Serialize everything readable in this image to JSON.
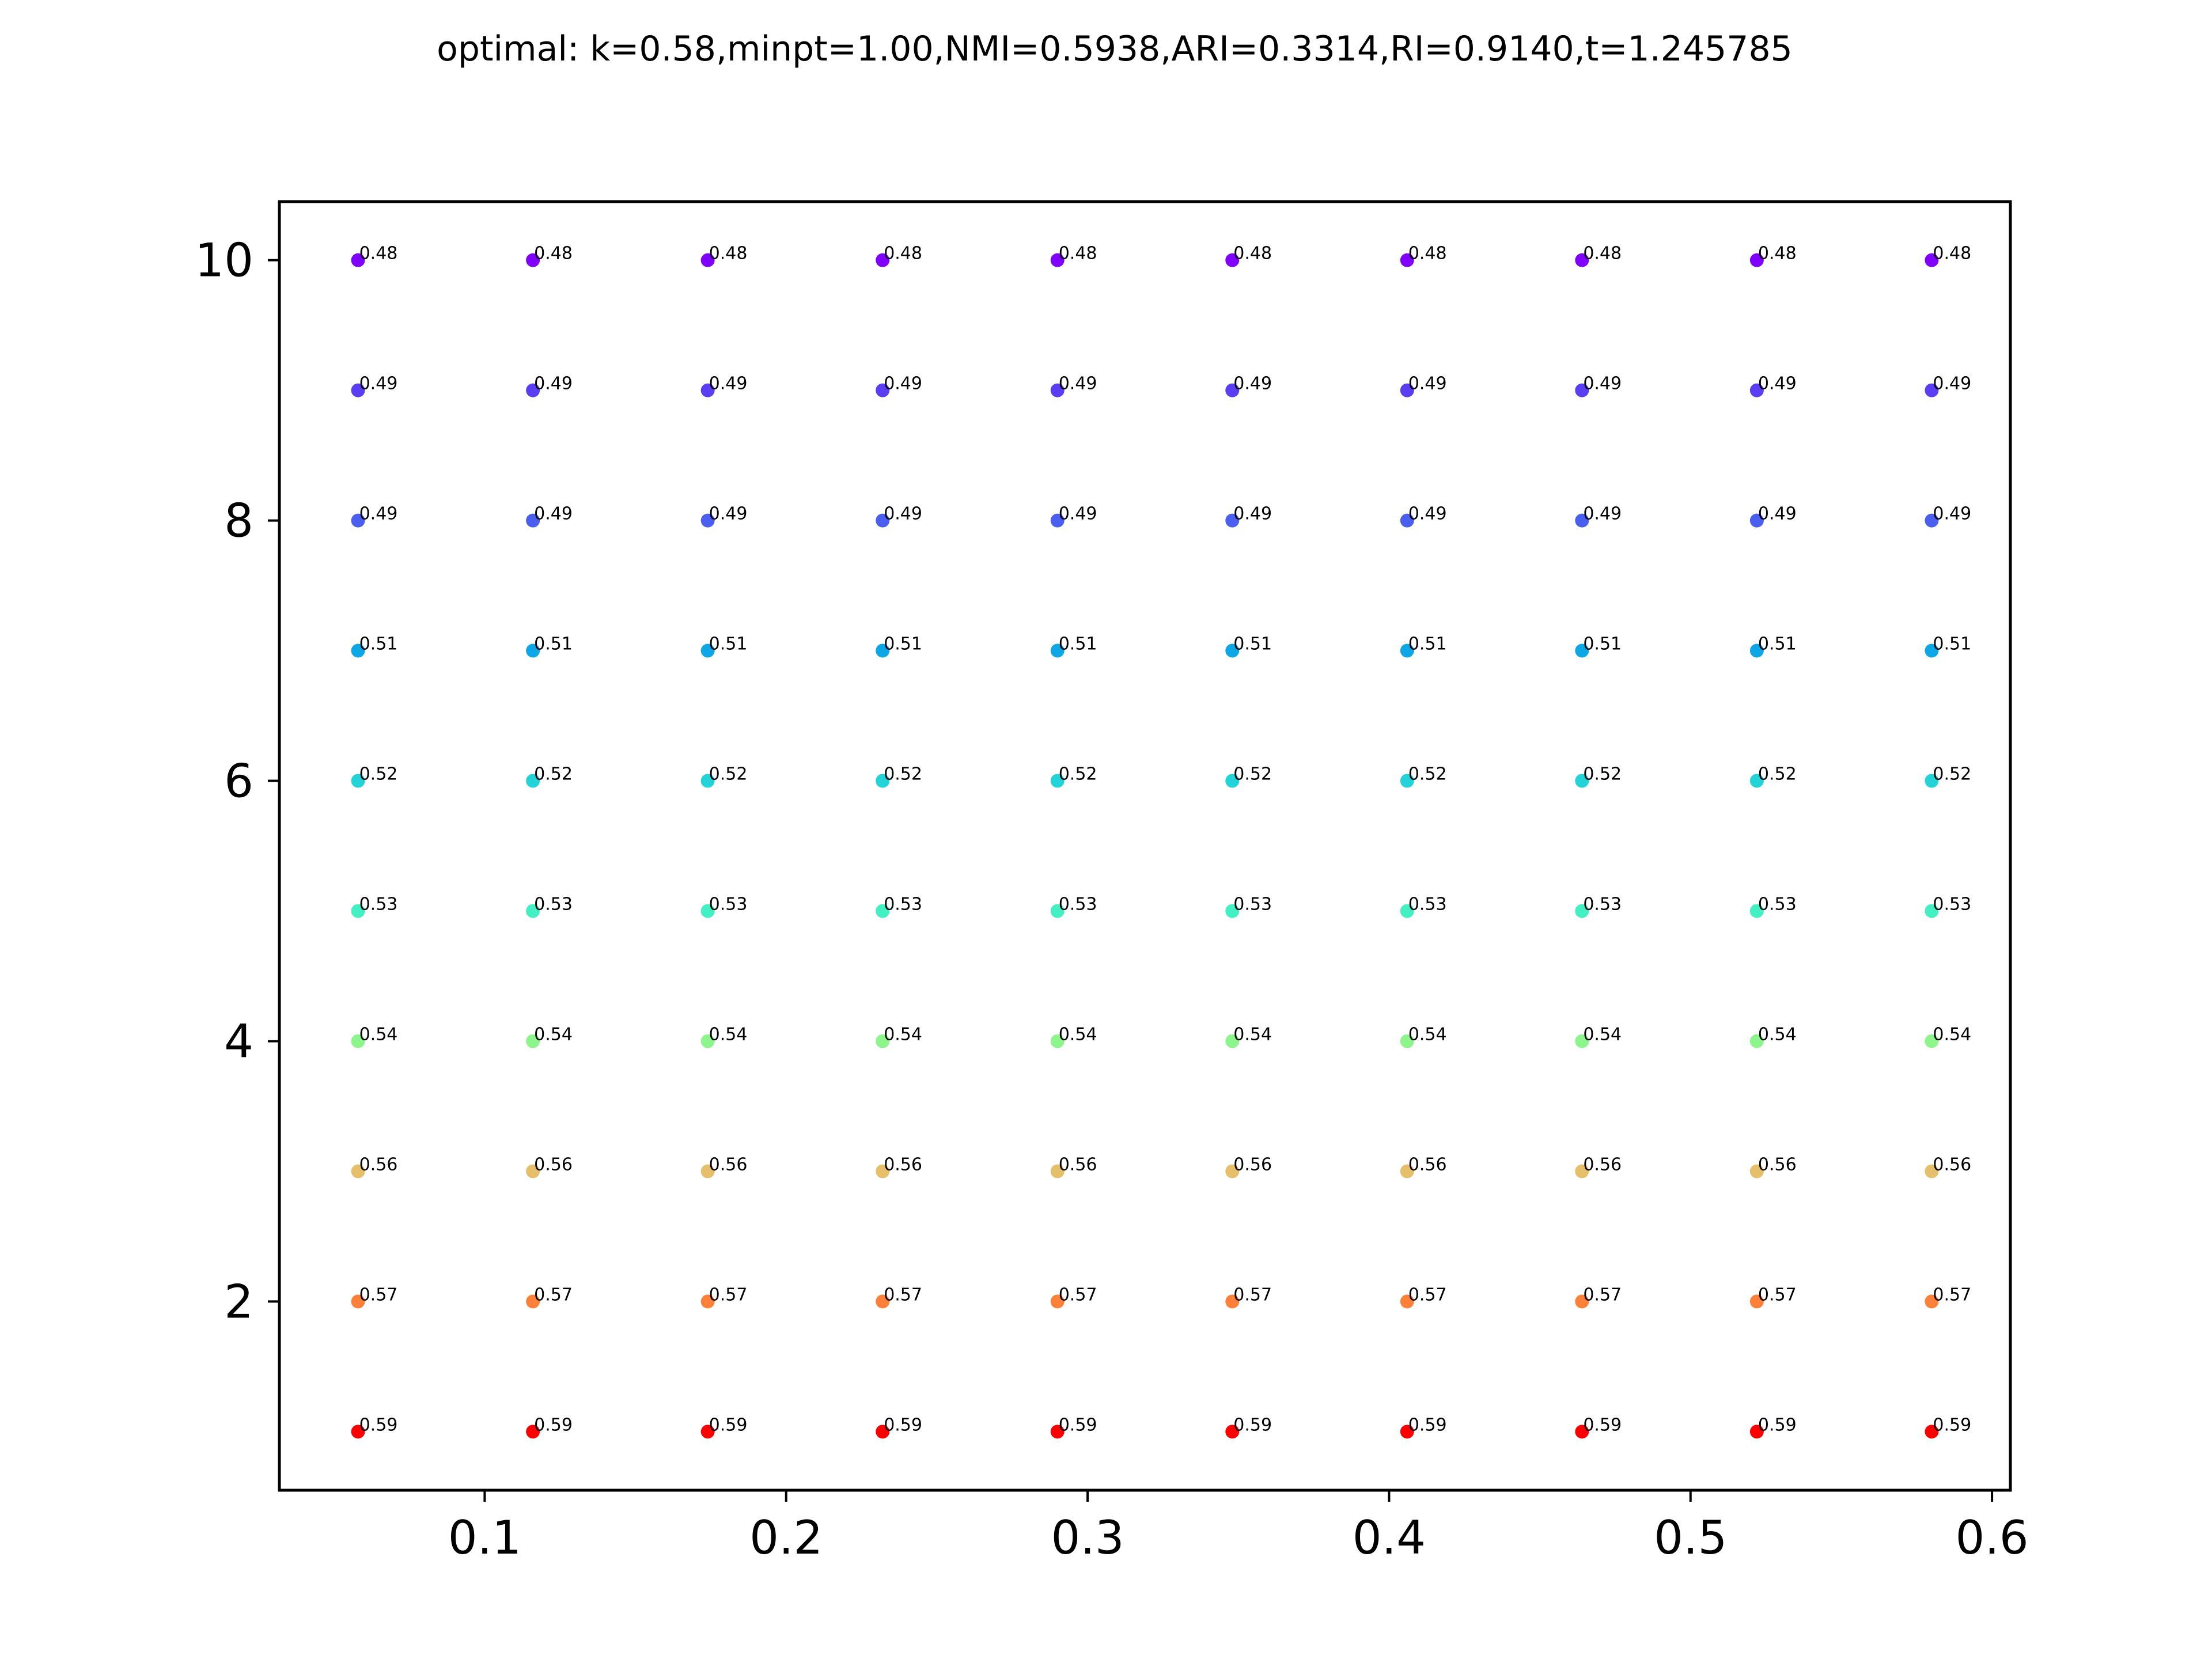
{
  "chart_data": {
    "type": "scatter",
    "title": "optimal: k=0.58,minpt=1.00,NMI=0.5938,ARI=0.3314,RI=0.9140,t=1.245785",
    "xlabel": "",
    "ylabel": "",
    "xlim": [
      0.0319,
      0.6061
    ],
    "ylim": [
      0.55,
      10.45
    ],
    "xticks": [
      0.1,
      0.2,
      0.3,
      0.4,
      0.5,
      0.6
    ],
    "xtick_labels": [
      "0.1",
      "0.2",
      "0.3",
      "0.4",
      "0.5",
      "0.6"
    ],
    "yticks": [
      2,
      4,
      6,
      8,
      10
    ],
    "ytick_labels": [
      "2",
      "4",
      "6",
      "8",
      "10"
    ],
    "grid": false,
    "colormap": "rainbow",
    "x_values": [
      0.058,
      0.116,
      0.174,
      0.232,
      0.29,
      0.348,
      0.406,
      0.464,
      0.522,
      0.58
    ],
    "rows": [
      {
        "y": 10,
        "label": "0.48",
        "color": "#8000ff"
      },
      {
        "y": 9,
        "label": "0.49",
        "color": "#5a3ef4"
      },
      {
        "y": 8,
        "label": "0.49",
        "color": "#4a5ef0"
      },
      {
        "y": 7,
        "label": "0.51",
        "color": "#0da7e6"
      },
      {
        "y": 6,
        "label": "0.52",
        "color": "#22d4d8"
      },
      {
        "y": 5,
        "label": "0.53",
        "color": "#42f0c3"
      },
      {
        "y": 4,
        "label": "0.54",
        "color": "#8cf68c"
      },
      {
        "y": 3,
        "label": "0.56",
        "color": "#e6bf6a"
      },
      {
        "y": 2,
        "label": "0.57",
        "color": "#ff8038"
      },
      {
        "y": 1,
        "label": "0.59",
        "color": "#ff0000"
      }
    ]
  }
}
